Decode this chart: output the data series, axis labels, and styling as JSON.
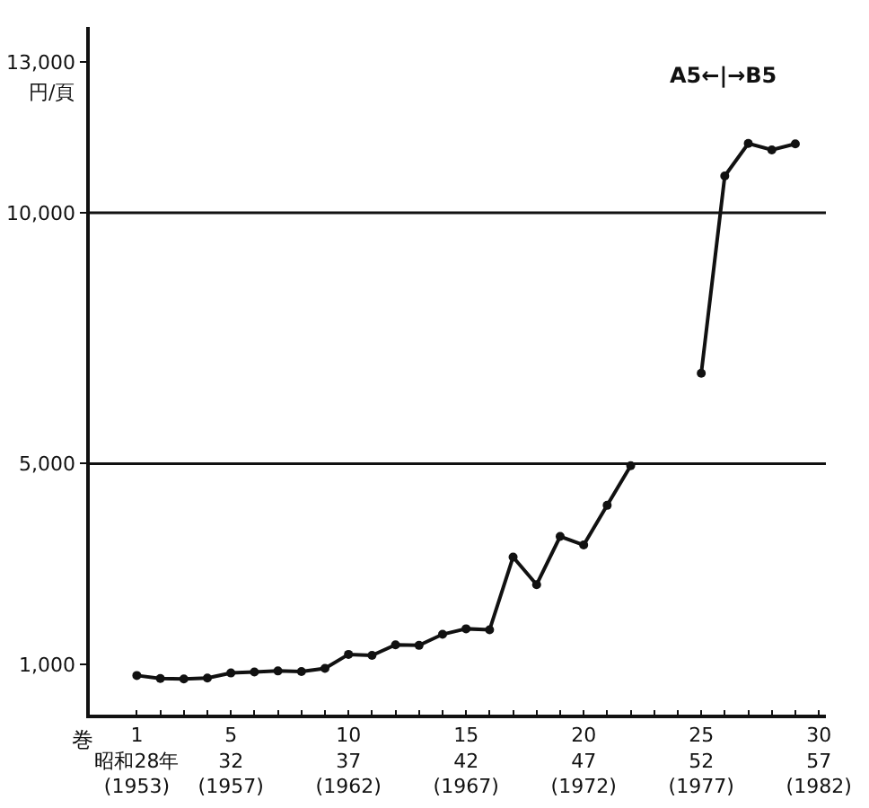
{
  "chart_data": {
    "type": "line",
    "ylabel": "円/頁",
    "annotations": [
      "巻",
      "A5←|→B5"
    ],
    "categories": [
      "1\n昭和28年\n(1953)",
      null,
      null,
      null,
      "5\n32\n(1957)",
      null,
      null,
      null,
      null,
      "10\n37\n(1962)",
      null,
      null,
      null,
      null,
      "15\n42\n(1967)",
      null,
      null,
      null,
      null,
      "20\n47\n(1972)",
      null,
      null,
      null,
      null,
      "25\n52\n(1977)",
      null,
      null,
      null,
      null,
      "30\n57\n(1982)"
    ],
    "values": [
      780,
      720,
      710,
      730,
      830,
      850,
      870,
      860,
      920,
      1200,
      1180,
      1390,
      1380,
      1600,
      1710,
      1690,
      3140,
      2590,
      3550,
      3380,
      4170,
      4960,
      null,
      null,
      6800,
      10730,
      11380,
      11250,
      11370,
      null
    ],
    "color": "#111111",
    "marker": "circle",
    "line_style": "solid",
    "grid": false,
    "ylim": [
      0,
      13700
    ],
    "yticks": [
      {
        "value": 1000,
        "label": "1,000"
      },
      {
        "value": 5000,
        "label": "5,000"
      },
      {
        "value": 10000,
        "label": "10,000"
      },
      {
        "value": 13000,
        "label": "13,000"
      }
    ],
    "ref_lines": [
      {
        "axis": "y",
        "value": 5000,
        "color": "#111111"
      },
      {
        "axis": "y",
        "value": 10000,
        "color": "#111111"
      }
    ]
  }
}
